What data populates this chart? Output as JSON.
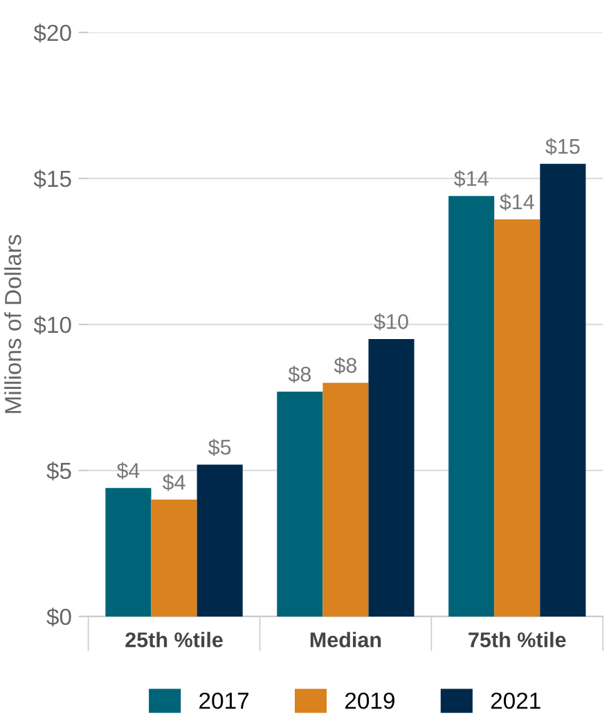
{
  "chart_data": {
    "type": "bar",
    "ylabel": "Millions of Dollars",
    "categories": [
      "25th %tile",
      "Median",
      "75th %tile"
    ],
    "series": [
      {
        "name": "2017",
        "color": "#006479",
        "values": [
          4.4,
          7.7,
          14.4
        ],
        "value_labels": [
          "$4",
          "$8",
          "$14"
        ]
      },
      {
        "name": "2019",
        "color": "#d9821f",
        "values": [
          4.0,
          8.0,
          13.6
        ],
        "value_labels": [
          "$4",
          "$8",
          "$14"
        ]
      },
      {
        "name": "2021",
        "color": "#00284a",
        "values": [
          5.2,
          9.5,
          15.5
        ],
        "value_labels": [
          "$5",
          "$10",
          "$15"
        ]
      }
    ],
    "ylim": [
      0,
      20
    ],
    "yticks": [
      {
        "value": 0,
        "label": "$0"
      },
      {
        "value": 5,
        "label": "$5"
      },
      {
        "value": 10,
        "label": "$10"
      },
      {
        "value": 15,
        "label": "$15"
      },
      {
        "value": 20,
        "label": "$20"
      }
    ],
    "grid": "y",
    "legend": "bottom"
  }
}
